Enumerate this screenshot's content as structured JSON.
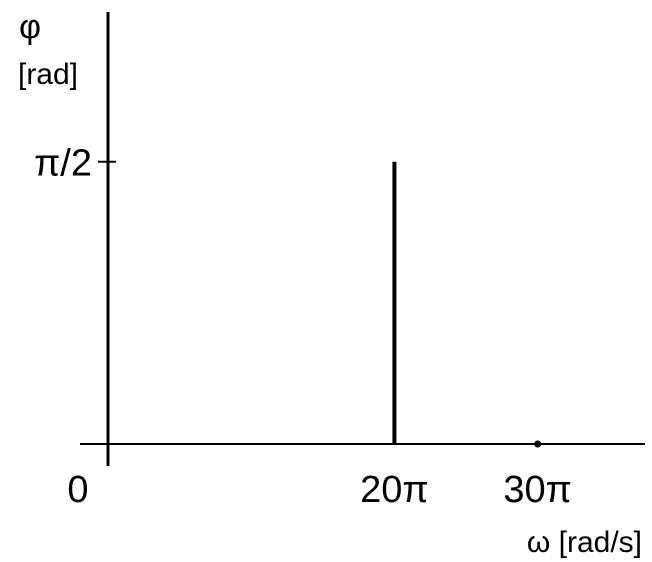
{
  "chart_data": {
    "type": "line",
    "title": "",
    "ylabel_symbol": "φ",
    "ylabel_unit": "[rad]",
    "xlabel": "ω [rad/s]",
    "x_ticks": [
      {
        "value": 0,
        "label": "0"
      },
      {
        "value": 62.83,
        "label": "20π"
      },
      {
        "value": 94.25,
        "label": "30π"
      }
    ],
    "y_ticks": [
      {
        "value": 1.5708,
        "label": "π/2"
      }
    ],
    "xlim": [
      0,
      117.8
    ],
    "ylim": [
      0,
      1.97
    ],
    "series": [
      {
        "points": [
          {
            "x": 62.83,
            "y": 1.5708,
            "style": "stem"
          },
          {
            "x": 94.25,
            "y": 0,
            "style": "dot"
          }
        ]
      }
    ],
    "grid": false,
    "colors": {
      "axis": "#000000",
      "mark": "#000000",
      "background": "#ffffff"
    }
  }
}
